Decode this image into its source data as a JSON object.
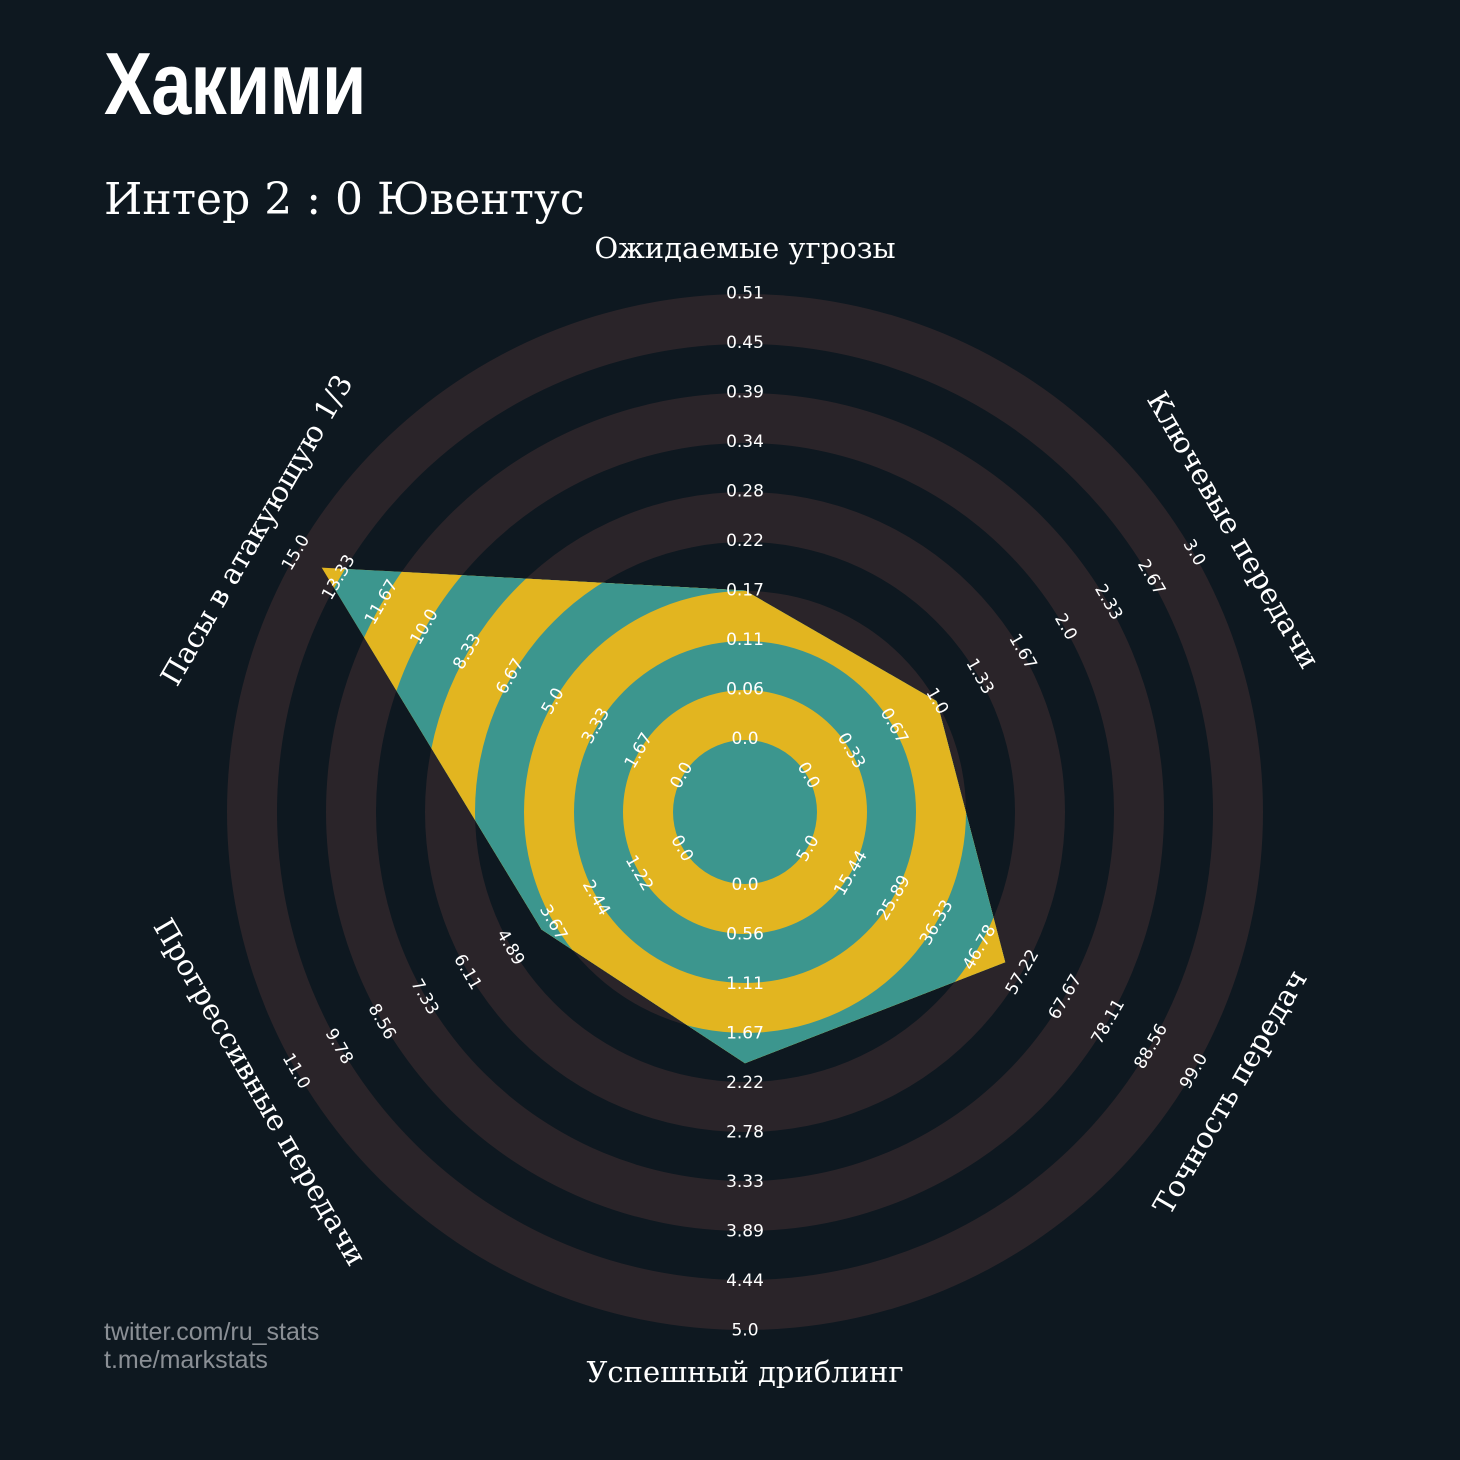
{
  "header": {
    "player_name": "Хакими",
    "match": "Интер 2 : 0 Ювентус"
  },
  "credits": {
    "line1": "twitter.com/ru_stats",
    "line2": "t.me/markstats"
  },
  "colors": {
    "background": "#0e1820",
    "ring_band": "#2a2429",
    "fill_teal": "#3c968e",
    "fill_gold": "#e2b520",
    "text": "#ffffff",
    "credits": "#8a8f95"
  },
  "chart_data": {
    "type": "radar",
    "axes": [
      {
        "label": "Ожидаемые угрозы",
        "ticks": [
          "0.0",
          "0.06",
          "0.11",
          "0.17",
          "0.22",
          "0.28",
          "0.34",
          "0.39",
          "0.45",
          "0.51"
        ],
        "range": [
          0.0,
          0.51
        ],
        "value": 0.17
      },
      {
        "label": "Ключевые передачи",
        "ticks": [
          "0.0",
          "0.33",
          "0.67",
          "1.0",
          "1.33",
          "1.67",
          "2.0",
          "2.33",
          "2.67",
          "3.0"
        ],
        "range": [
          0.0,
          3.0
        ],
        "value": 1.0
      },
      {
        "label": "Точность передач",
        "ticks": [
          "5.0",
          "15.44",
          "25.89",
          "36.33",
          "46.78",
          "57.22",
          "67.67",
          "78.11",
          "88.56",
          "99.0"
        ],
        "range": [
          5.0,
          99.0
        ],
        "value": 53.0
      },
      {
        "label": "Успешный дриблинг",
        "ticks": [
          "0.0",
          "0.56",
          "1.11",
          "1.67",
          "2.22",
          "2.78",
          "3.33",
          "3.89",
          "4.44",
          "5.0"
        ],
        "range": [
          0.0,
          5.0
        ],
        "value": 2.0
      },
      {
        "label": "Прогрессивные передачи",
        "ticks": [
          "0.0",
          "1.22",
          "2.44",
          "3.67",
          "4.89",
          "6.11",
          "7.33",
          "8.56",
          "9.78",
          "11.0"
        ],
        "range": [
          0.0,
          11.0
        ],
        "value": 4.0
      },
      {
        "label": "Пасы в атакующую 1/3",
        "ticks": [
          "0.0",
          "1.67",
          "3.33",
          "5.0",
          "6.67",
          "8.33",
          "10.0",
          "11.67",
          "13.33",
          "15.0"
        ],
        "range": [
          0.0,
          15.0
        ],
        "value": 14.0
      }
    ]
  }
}
